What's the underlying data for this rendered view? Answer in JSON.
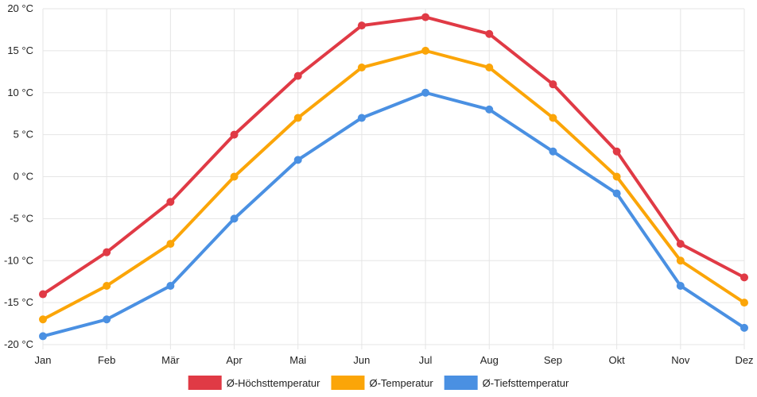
{
  "chart_data": {
    "type": "line",
    "title": "",
    "xlabel": "",
    "ylabel": "",
    "categories": [
      "Jan",
      "Feb",
      "Mär",
      "Apr",
      "Mai",
      "Jun",
      "Jul",
      "Aug",
      "Sep",
      "Okt",
      "Nov",
      "Dez"
    ],
    "ylim": [
      -20,
      20
    ],
    "ystep": 5,
    "yunit": "°C",
    "y_tick_labels": [
      "20 °C",
      "15 °C",
      "10 °C",
      "5 °C",
      "0 °C",
      "-5 °C",
      "-10 °C",
      "-15 °C",
      "-20 °C"
    ],
    "grid": true,
    "legend_position": "bottom-center",
    "series": [
      {
        "name": "Ø-Höchsttemperatur",
        "color": "#e03a45",
        "values": [
          -14,
          -9,
          -3,
          5,
          12,
          18,
          19,
          17,
          11,
          3,
          -8,
          -12
        ]
      },
      {
        "name": "Ø-Temperatur",
        "color": "#fba508",
        "values": [
          -17,
          -13,
          -8,
          0,
          7,
          13,
          15,
          13,
          7,
          0,
          -10,
          -15
        ]
      },
      {
        "name": "Ø-Tiefsttemperatur",
        "color": "#4a90e2",
        "values": [
          -19,
          -17,
          -13,
          -5,
          2,
          7,
          10,
          8,
          3,
          -2,
          -13,
          -18
        ]
      }
    ]
  }
}
